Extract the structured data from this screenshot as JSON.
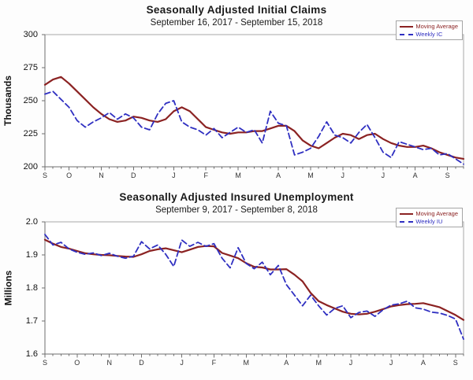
{
  "chart_data": [
    {
      "type": "line",
      "title": "Seasonally Adjusted Initial Claims",
      "subtitle": "September 16, 2017 - September 15, 2018",
      "y_axis_title": "Thousands",
      "ylim": [
        200,
        300
      ],
      "ytick_values": [
        300,
        275,
        250,
        225,
        200
      ],
      "ytick_labels": [
        "300",
        "275",
        "250",
        "225",
        "200"
      ],
      "gridlines": [
        275,
        250,
        225
      ],
      "weeks": 53,
      "month_labels": [
        "S",
        "O",
        "N",
        "D",
        "J",
        "F",
        "M",
        "A",
        "M",
        "J",
        "J",
        "A",
        "S"
      ],
      "month_weeks": [
        0,
        3,
        7,
        11,
        16,
        20,
        24,
        29,
        33,
        37,
        42,
        46,
        50
      ],
      "legend_position": "top-right",
      "legend": [
        {
          "label": "Moving Average",
          "icon": "solid-line-swatch",
          "style": "solid",
          "color": "#8b2222",
          "text_color": "#8b2222"
        },
        {
          "label": "Weekly IC",
          "icon": "dashed-line-swatch",
          "style": "dashed",
          "color": "#2f2fc1",
          "text_color": "#2f2fc1"
        }
      ],
      "series": [
        {
          "name": "Moving Average",
          "name_slug": "moving-average",
          "color": "#8b2222",
          "width": 2.2,
          "dash": "",
          "values": [
            262,
            266,
            268,
            263,
            257,
            251,
            245,
            240,
            236,
            234,
            235,
            238,
            237,
            235,
            234,
            236,
            242,
            245,
            242,
            236,
            230,
            228,
            226,
            225,
            226,
            226,
            227,
            227,
            229,
            231,
            231,
            227,
            220,
            216,
            214,
            218,
            222,
            225,
            224,
            221,
            224,
            225,
            221,
            218,
            216,
            215,
            215,
            216,
            214,
            211,
            209,
            207,
            206
          ]
        },
        {
          "name": "Weekly IC",
          "name_slug": "weekly-ic",
          "color": "#2f2fc1",
          "width": 1.8,
          "dash": "7 4",
          "values": [
            255,
            257,
            251,
            245,
            235,
            230,
            234,
            237,
            241,
            236,
            240,
            237,
            230,
            228,
            240,
            248,
            250,
            234,
            230,
            228,
            224,
            229,
            222,
            226,
            230,
            226,
            228,
            218,
            242,
            233,
            231,
            209,
            211,
            214,
            223,
            234,
            224,
            222,
            218,
            226,
            232,
            222,
            211,
            207,
            219,
            217,
            215,
            213,
            214,
            209,
            210,
            206,
            202
          ]
        }
      ]
    },
    {
      "type": "line",
      "title": "Seasonally Adjusted Insured Unemployment",
      "subtitle": "September 9, 2017 - September 8, 2018",
      "y_axis_title": "Millions",
      "ylim": [
        1.6,
        2.0
      ],
      "ytick_values": [
        2.0,
        1.9,
        1.8,
        1.7,
        1.6
      ],
      "ytick_labels": [
        "2.0",
        "1.9",
        "1.8",
        "1.7",
        "1.6"
      ],
      "gridlines": [
        1.9,
        1.8,
        1.7
      ],
      "weeks": 53,
      "month_labels": [
        "S",
        "O",
        "N",
        "D",
        "J",
        "F",
        "M",
        "A",
        "M",
        "J",
        "J",
        "A",
        "S"
      ],
      "month_weeks": [
        0,
        4,
        8,
        12,
        17,
        21,
        25,
        30,
        34,
        38,
        43,
        47,
        51
      ],
      "legend_position": "top-right",
      "legend": [
        {
          "label": "Moving Average",
          "icon": "solid-line-swatch",
          "style": "solid",
          "color": "#8b2222",
          "text_color": "#8b2222"
        },
        {
          "label": "Weekly IU",
          "icon": "dashed-line-swatch",
          "style": "dashed",
          "color": "#2f2fc1",
          "text_color": "#2f2fc1"
        }
      ],
      "series": [
        {
          "name": "Moving Average",
          "name_slug": "moving-average",
          "color": "#8b2222",
          "width": 2.2,
          "dash": "",
          "values": [
            1.946,
            1.934,
            1.924,
            1.919,
            1.912,
            1.905,
            1.902,
            1.9,
            1.899,
            1.897,
            1.895,
            1.894,
            1.902,
            1.912,
            1.917,
            1.92,
            1.914,
            1.908,
            1.916,
            1.924,
            1.927,
            1.926,
            1.906,
            1.898,
            1.89,
            1.875,
            1.864,
            1.862,
            1.856,
            1.856,
            1.857,
            1.84,
            1.82,
            1.785,
            1.76,
            1.748,
            1.738,
            1.728,
            1.722,
            1.72,
            1.722,
            1.728,
            1.736,
            1.744,
            1.748,
            1.751,
            1.752,
            1.754,
            1.748,
            1.742,
            1.73,
            1.718,
            1.703
          ]
        },
        {
          "name": "Weekly IU",
          "name_slug": "weekly-iu",
          "color": "#2f2fc1",
          "width": 1.8,
          "dash": "7 4",
          "values": [
            1.962,
            1.93,
            1.938,
            1.918,
            1.908,
            1.902,
            1.906,
            1.898,
            1.905,
            1.896,
            1.89,
            1.896,
            1.94,
            1.918,
            1.93,
            1.902,
            1.865,
            1.945,
            1.926,
            1.938,
            1.926,
            1.934,
            1.89,
            1.861,
            1.922,
            1.874,
            1.858,
            1.878,
            1.84,
            1.868,
            1.81,
            1.778,
            1.746,
            1.778,
            1.746,
            1.718,
            1.738,
            1.746,
            1.71,
            1.726,
            1.73,
            1.714,
            1.734,
            1.748,
            1.752,
            1.76,
            1.74,
            1.736,
            1.727,
            1.724,
            1.717,
            1.706,
            1.645
          ]
        }
      ]
    }
  ]
}
